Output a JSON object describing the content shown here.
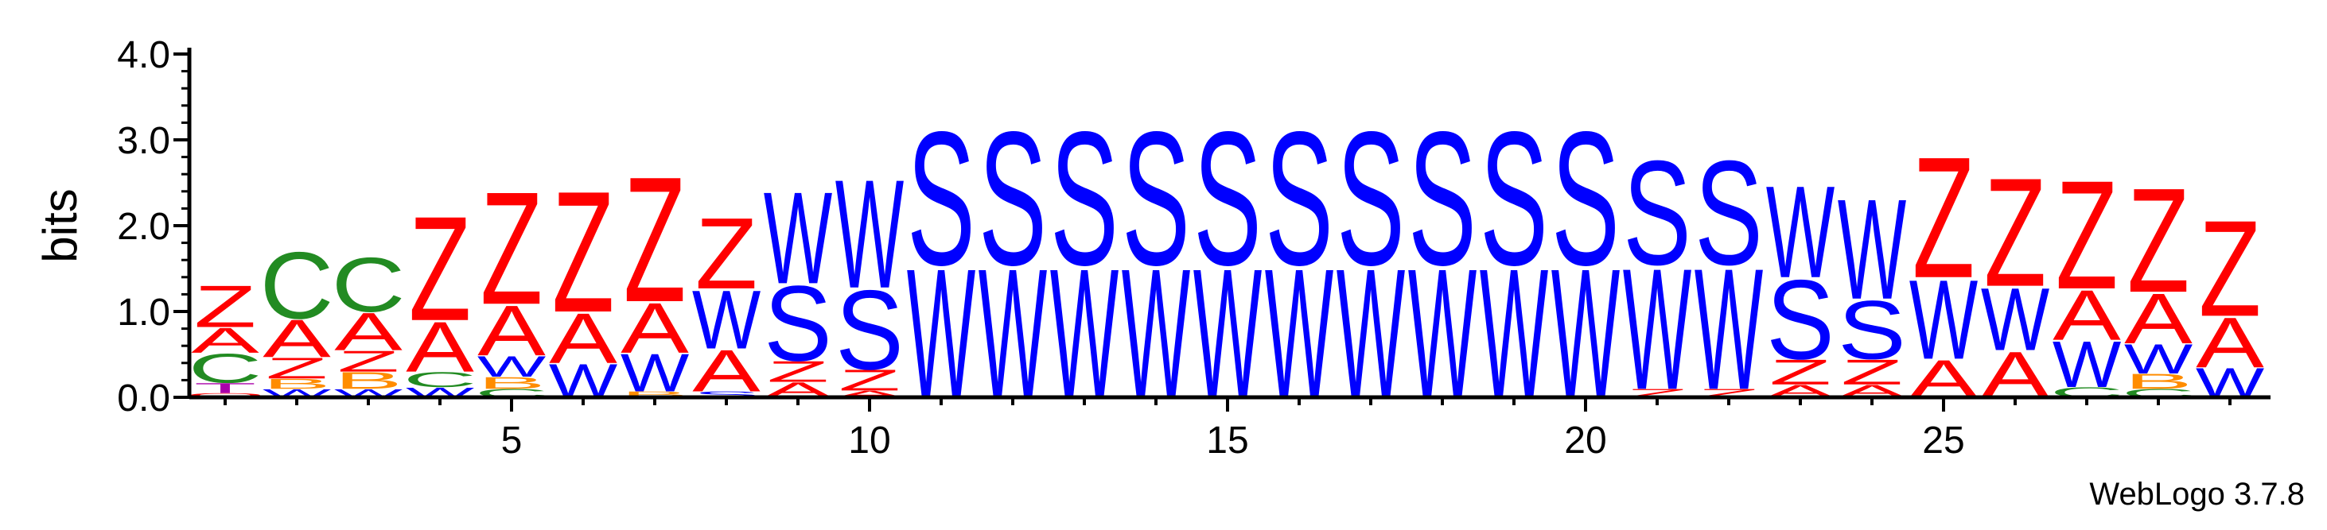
{
  "chart_data": {
    "type": "sequence-logo",
    "ylabel": "bits",
    "ylim": [
      0,
      4.0
    ],
    "y_ticks": [
      "0.0",
      "1.0",
      "2.0",
      "3.0",
      "4.0"
    ],
    "x_ticks": [
      5,
      10,
      15,
      20,
      25
    ],
    "colors": {
      "A": "#ff0000",
      "Z": "#ff0000",
      "S": "#0000ff",
      "W": "#0000ff",
      "C": "#228b22",
      "B": "#ff8c00",
      "T": "#aa00aa",
      "O": "#ff0000"
    },
    "positions": [
      {
        "pos": 1,
        "stack": [
          {
            "l": "O",
            "h": 0.05
          },
          {
            "l": "T",
            "h": 0.12
          },
          {
            "l": "C",
            "h": 0.35
          },
          {
            "l": "A",
            "h": 0.3
          },
          {
            "l": "Z",
            "h": 0.5
          }
        ]
      },
      {
        "pos": 2,
        "stack": [
          {
            "l": "W",
            "h": 0.1
          },
          {
            "l": "B",
            "h": 0.12
          },
          {
            "l": "Z",
            "h": 0.25
          },
          {
            "l": "A",
            "h": 0.45
          },
          {
            "l": "C",
            "h": 0.8
          }
        ]
      },
      {
        "pos": 3,
        "stack": [
          {
            "l": "W",
            "h": 0.1
          },
          {
            "l": "B",
            "h": 0.2
          },
          {
            "l": "Z",
            "h": 0.25
          },
          {
            "l": "A",
            "h": 0.45
          },
          {
            "l": "C",
            "h": 0.65
          }
        ]
      },
      {
        "pos": 4,
        "stack": [
          {
            "l": "W",
            "h": 0.12
          },
          {
            "l": "C",
            "h": 0.18
          },
          {
            "l": "A",
            "h": 0.6
          },
          {
            "l": "Z",
            "h": 1.25
          }
        ]
      },
      {
        "pos": 5,
        "stack": [
          {
            "l": "C",
            "h": 0.1
          },
          {
            "l": "B",
            "h": 0.14
          },
          {
            "l": "W",
            "h": 0.25
          },
          {
            "l": "A",
            "h": 0.6
          },
          {
            "l": "Z",
            "h": 1.35
          }
        ]
      },
      {
        "pos": 6,
        "stack": [
          {
            "l": "W",
            "h": 0.4
          },
          {
            "l": "A",
            "h": 0.6
          },
          {
            "l": "Z",
            "h": 1.45
          }
        ]
      },
      {
        "pos": 7,
        "stack": [
          {
            "l": "B",
            "h": 0.07
          },
          {
            "l": "W",
            "h": 0.45
          },
          {
            "l": "A",
            "h": 0.6
          },
          {
            "l": "Z",
            "h": 1.5
          }
        ]
      },
      {
        "pos": 8,
        "stack": [
          {
            "l": "S",
            "h": 0.07
          },
          {
            "l": "A",
            "h": 0.5
          },
          {
            "l": "W",
            "h": 0.7
          },
          {
            "l": "Z",
            "h": 0.85
          }
        ]
      },
      {
        "pos": 9,
        "stack": [
          {
            "l": "A",
            "h": 0.18
          },
          {
            "l": "Z",
            "h": 0.25
          },
          {
            "l": "S",
            "h": 0.9
          },
          {
            "l": "W",
            "h": 1.1
          }
        ]
      },
      {
        "pos": 10,
        "stack": [
          {
            "l": "A",
            "h": 0.08
          },
          {
            "l": "Z",
            "h": 0.25
          },
          {
            "l": "S",
            "h": 0.95
          },
          {
            "l": "W",
            "h": 1.3
          }
        ]
      },
      {
        "pos": 11,
        "stack": [
          {
            "l": "W",
            "h": 1.55
          },
          {
            "l": "S",
            "h": 1.6
          }
        ]
      },
      {
        "pos": 12,
        "stack": [
          {
            "l": "W",
            "h": 1.55
          },
          {
            "l": "S",
            "h": 1.6
          }
        ]
      },
      {
        "pos": 13,
        "stack": [
          {
            "l": "W",
            "h": 1.55
          },
          {
            "l": "S",
            "h": 1.6
          }
        ]
      },
      {
        "pos": 14,
        "stack": [
          {
            "l": "W",
            "h": 1.55
          },
          {
            "l": "S",
            "h": 1.6
          }
        ]
      },
      {
        "pos": 15,
        "stack": [
          {
            "l": "W",
            "h": 1.55
          },
          {
            "l": "S",
            "h": 1.6
          }
        ]
      },
      {
        "pos": 16,
        "stack": [
          {
            "l": "W",
            "h": 1.55
          },
          {
            "l": "S",
            "h": 1.6
          }
        ]
      },
      {
        "pos": 17,
        "stack": [
          {
            "l": "W",
            "h": 1.55
          },
          {
            "l": "S",
            "h": 1.6
          }
        ]
      },
      {
        "pos": 18,
        "stack": [
          {
            "l": "W",
            "h": 1.55
          },
          {
            "l": "S",
            "h": 1.6
          }
        ]
      },
      {
        "pos": 19,
        "stack": [
          {
            "l": "W",
            "h": 1.55
          },
          {
            "l": "S",
            "h": 1.6
          }
        ]
      },
      {
        "pos": 20,
        "stack": [
          {
            "l": "W",
            "h": 1.55
          },
          {
            "l": "S",
            "h": 1.6
          }
        ]
      },
      {
        "pos": 21,
        "stack": [
          {
            "l": "Z",
            "h": 0.1
          },
          {
            "l": "W",
            "h": 1.45
          },
          {
            "l": "S",
            "h": 1.25
          }
        ]
      },
      {
        "pos": 22,
        "stack": [
          {
            "l": "Z",
            "h": 0.1
          },
          {
            "l": "W",
            "h": 1.45
          },
          {
            "l": "S",
            "h": 1.25
          }
        ]
      },
      {
        "pos": 23,
        "stack": [
          {
            "l": "A",
            "h": 0.15
          },
          {
            "l": "Z",
            "h": 0.3
          },
          {
            "l": "S",
            "h": 0.95
          },
          {
            "l": "W",
            "h": 1.1
          }
        ]
      },
      {
        "pos": 24,
        "stack": [
          {
            "l": "A",
            "h": 0.15
          },
          {
            "l": "Z",
            "h": 0.3
          },
          {
            "l": "S",
            "h": 0.7
          },
          {
            "l": "W",
            "h": 1.2
          }
        ]
      },
      {
        "pos": 25,
        "stack": [
          {
            "l": "A",
            "h": 0.45
          },
          {
            "l": "W",
            "h": 0.95
          },
          {
            "l": "Z",
            "h": 1.45
          }
        ]
      },
      {
        "pos": 26,
        "stack": [
          {
            "l": "A",
            "h": 0.55
          },
          {
            "l": "W",
            "h": 0.75
          },
          {
            "l": "Z",
            "h": 1.3
          }
        ]
      },
      {
        "pos": 27,
        "stack": [
          {
            "l": "C",
            "h": 0.12
          },
          {
            "l": "W",
            "h": 0.55
          },
          {
            "l": "A",
            "h": 0.6
          },
          {
            "l": "Z",
            "h": 1.3
          }
        ]
      },
      {
        "pos": 28,
        "stack": [
          {
            "l": "C",
            "h": 0.1
          },
          {
            "l": "B",
            "h": 0.18
          },
          {
            "l": "W",
            "h": 0.35
          },
          {
            "l": "A",
            "h": 0.6
          },
          {
            "l": "Z",
            "h": 1.25
          }
        ]
      },
      {
        "pos": 29,
        "stack": [
          {
            "l": "W",
            "h": 0.35
          },
          {
            "l": "A",
            "h": 0.6
          },
          {
            "l": "Z",
            "h": 1.15
          }
        ]
      }
    ]
  },
  "credit": "WebLogo 3.7.8"
}
